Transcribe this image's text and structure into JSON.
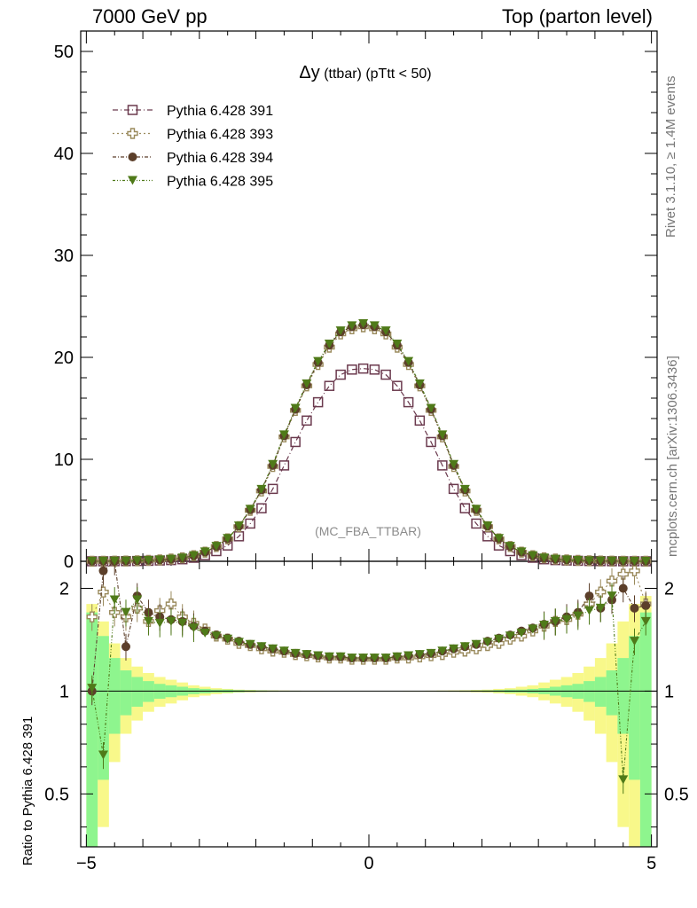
{
  "header": {
    "left": "7000 GeV pp",
    "right": "Top (parton level)"
  },
  "side_labels": {
    "rivet": "Rivet 3.1.10, ≥ 1.4M events",
    "mcplots": "mcplots.cern.ch [arXiv:1306.3436]"
  },
  "chart_data": {
    "type": "scatter",
    "title_symbol": "Δy",
    "title_rest": " (ttbar) (pTtt < 50)",
    "analysis_tag": "(MC_FBA_TTBAR)",
    "xlim": [
      -5.1,
      5.1
    ],
    "x_ticks": [
      "−5",
      "0",
      "5"
    ],
    "x_tick_values": [
      -5,
      0,
      5
    ],
    "main": {
      "ylim": [
        0,
        52
      ],
      "y_ticks": [
        "0",
        "10",
        "20",
        "30",
        "40",
        "50"
      ],
      "y_tick_values": [
        0,
        10,
        20,
        30,
        40,
        50
      ]
    },
    "ratio": {
      "ylabel": "Ratio to Pythia 6.428 391",
      "y_ticks": [
        "0.5",
        "1",
        "2"
      ],
      "y_tick_values": [
        0.5,
        1,
        2
      ],
      "log_scale": true,
      "ylim": [
        0.35,
        2.4
      ]
    },
    "colors": {
      "s391": "#6b3a4e",
      "s393": "#9a8a5c",
      "s394": "#5c3f2a",
      "s395": "#4f7a19",
      "band_inner": "#8ef58e",
      "band_outer": "#f8f88a"
    },
    "legend_position": "top-left",
    "series": [
      {
        "name": "Pythia 6.428 391",
        "marker": "open-square"
      },
      {
        "name": "Pythia 6.428 393",
        "marker": "open-cross"
      },
      {
        "name": "Pythia 6.428 394",
        "marker": "filled-circle"
      },
      {
        "name": "Pythia 6.428 395",
        "marker": "filled-triangle-down"
      }
    ],
    "x": [
      -4.9,
      -4.7,
      -4.5,
      -4.3,
      -4.1,
      -3.9,
      -3.7,
      -3.5,
      -3.3,
      -3.1,
      -2.9,
      -2.7,
      -2.5,
      -2.3,
      -2.1,
      -1.9,
      -1.7,
      -1.5,
      -1.3,
      -1.1,
      -0.9,
      -0.7,
      -0.5,
      -0.3,
      -0.1,
      0.1,
      0.3,
      0.5,
      0.7,
      0.9,
      1.1,
      1.3,
      1.5,
      1.7,
      1.9,
      2.1,
      2.3,
      2.5,
      2.7,
      2.9,
      3.1,
      3.3,
      3.5,
      3.7,
      3.9,
      4.1,
      4.3,
      4.5,
      4.7,
      4.9
    ],
    "y391": [
      0.003,
      0.005,
      0.01,
      0.017,
      0.03,
      0.05,
      0.08,
      0.12,
      0.2,
      0.35,
      0.6,
      1.0,
      1.55,
      2.45,
      3.7,
      5.2,
      7.1,
      9.4,
      11.7,
      13.8,
      15.6,
      17.2,
      18.3,
      18.8,
      18.9,
      18.8,
      18.3,
      17.2,
      15.6,
      13.8,
      11.7,
      9.4,
      7.1,
      5.2,
      3.7,
      2.45,
      1.55,
      1.0,
      0.6,
      0.35,
      0.2,
      0.12,
      0.08,
      0.05,
      0.03,
      0.017,
      0.01,
      0.005,
      0.003,
      0.002
    ],
    "y393": [
      0.004,
      0.008,
      0.02,
      0.03,
      0.05,
      0.09,
      0.14,
      0.22,
      0.34,
      0.55,
      0.9,
      1.45,
      2.2,
      3.4,
      5.0,
      6.9,
      9.3,
      12.2,
      14.8,
      17.2,
      19.3,
      21.0,
      22.3,
      22.8,
      23.0,
      22.8,
      22.3,
      21.0,
      19.3,
      17.2,
      14.8,
      12.2,
      9.3,
      6.9,
      5.0,
      3.4,
      2.2,
      1.45,
      0.9,
      0.55,
      0.34,
      0.22,
      0.14,
      0.09,
      0.05,
      0.03,
      0.02,
      0.008,
      0.004,
      0.002
    ],
    "y394": [
      0.004,
      0.009,
      0.022,
      0.03,
      0.055,
      0.095,
      0.14,
      0.21,
      0.33,
      0.55,
      0.91,
      1.46,
      2.22,
      3.45,
      5.05,
      7.0,
      9.4,
      12.3,
      14.9,
      17.3,
      19.5,
      21.2,
      22.5,
      23.0,
      23.2,
      23.0,
      22.5,
      21.2,
      19.5,
      17.3,
      14.9,
      12.3,
      9.4,
      7.0,
      5.05,
      3.45,
      2.22,
      1.46,
      0.91,
      0.55,
      0.33,
      0.21,
      0.14,
      0.095,
      0.055,
      0.03,
      0.02,
      0.009,
      0.004,
      0.002
    ],
    "y395": [
      0.004,
      0.009,
      0.02,
      0.031,
      0.055,
      0.09,
      0.14,
      0.21,
      0.33,
      0.55,
      0.92,
      1.47,
      2.24,
      3.47,
      5.1,
      7.05,
      9.5,
      12.4,
      15.0,
      17.4,
      19.6,
      21.3,
      22.6,
      23.1,
      23.3,
      23.1,
      22.6,
      21.3,
      19.6,
      17.4,
      15.0,
      12.4,
      9.5,
      7.05,
      5.1,
      3.47,
      2.24,
      1.47,
      0.92,
      0.55,
      0.33,
      0.21,
      0.14,
      0.09,
      0.055,
      0.031,
      0.02,
      0.009,
      0.004,
      0.002
    ],
    "r393": [
      1.65,
      1.95,
      1.7,
      1.65,
      1.75,
      1.6,
      1.72,
      1.8,
      1.65,
      1.58,
      1.52,
      1.45,
      1.42,
      1.38,
      1.36,
      1.33,
      1.31,
      1.3,
      1.28,
      1.27,
      1.26,
      1.25,
      1.25,
      1.24,
      1.24,
      1.24,
      1.24,
      1.25,
      1.25,
      1.26,
      1.27,
      1.28,
      1.3,
      1.31,
      1.33,
      1.36,
      1.38,
      1.42,
      1.45,
      1.5,
      1.55,
      1.6,
      1.62,
      1.68,
      1.8,
      1.95,
      2.1,
      2.2,
      2.25,
      1.8
    ],
    "r394": [
      1.0,
      2.25,
      2.4,
      1.35,
      1.9,
      1.7,
      1.65,
      1.62,
      1.6,
      1.55,
      1.5,
      1.46,
      1.43,
      1.4,
      1.37,
      1.35,
      1.33,
      1.31,
      1.29,
      1.28,
      1.27,
      1.26,
      1.26,
      1.25,
      1.25,
      1.25,
      1.25,
      1.26,
      1.27,
      1.28,
      1.29,
      1.31,
      1.33,
      1.35,
      1.37,
      1.4,
      1.43,
      1.46,
      1.5,
      1.53,
      1.57,
      1.6,
      1.65,
      1.7,
      1.9,
      1.75,
      1.85,
      2.0,
      1.75,
      1.78
    ],
    "r395": [
      1.02,
      0.65,
      1.85,
      1.7,
      1.85,
      1.6,
      1.58,
      1.6,
      1.58,
      1.53,
      1.48,
      1.45,
      1.42,
      1.39,
      1.37,
      1.35,
      1.33,
      1.31,
      1.29,
      1.28,
      1.27,
      1.26,
      1.26,
      1.25,
      1.25,
      1.25,
      1.25,
      1.26,
      1.27,
      1.28,
      1.29,
      1.31,
      1.33,
      1.35,
      1.37,
      1.39,
      1.42,
      1.45,
      1.48,
      1.52,
      1.56,
      1.6,
      1.62,
      1.66,
      1.72,
      1.75,
      1.9,
      0.55,
      1.4,
      1.6
    ],
    "band_inner": [
      0.3,
      0.55,
      0.75,
      0.85,
      0.9,
      0.93,
      0.95,
      0.96,
      0.97,
      0.98,
      0.985,
      0.99,
      0.99,
      0.993,
      0.995,
      0.996,
      0.997,
      0.998,
      0.998,
      0.999,
      0.999,
      0.999,
      0.999,
      0.999,
      0.999,
      0.999,
      0.999,
      0.999,
      0.999,
      0.999,
      0.999,
      0.998,
      0.998,
      0.997,
      0.996,
      0.995,
      0.993,
      0.99,
      0.99,
      0.985,
      0.98,
      0.97,
      0.96,
      0.95,
      0.93,
      0.9,
      0.85,
      0.75,
      0.55,
      0.3
    ],
    "band_outer": [
      0.2,
      0.4,
      0.62,
      0.75,
      0.82,
      0.87,
      0.9,
      0.92,
      0.94,
      0.96,
      0.97,
      0.98,
      0.985,
      0.99,
      0.992,
      0.994,
      0.995,
      0.996,
      0.997,
      0.998,
      0.998,
      0.999,
      0.999,
      0.999,
      0.999,
      0.999,
      0.999,
      0.999,
      0.998,
      0.998,
      0.997,
      0.996,
      0.995,
      0.994,
      0.992,
      0.99,
      0.985,
      0.98,
      0.97,
      0.96,
      0.94,
      0.92,
      0.9,
      0.87,
      0.82,
      0.75,
      0.62,
      0.4,
      0.2,
      0.1
    ]
  }
}
